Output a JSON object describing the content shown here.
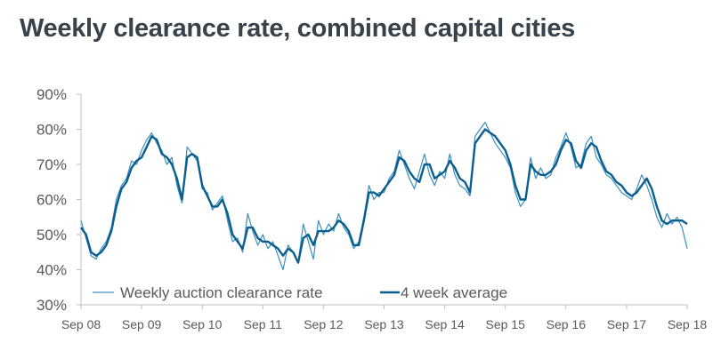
{
  "chart_data": {
    "type": "line",
    "title": "Weekly clearance rate, combined capital cities",
    "xlabel": "",
    "ylabel": "",
    "ylim": [
      30,
      90
    ],
    "y_ticks": [
      "30%",
      "40%",
      "50%",
      "60%",
      "70%",
      "80%",
      "90%"
    ],
    "y_tick_values": [
      30,
      40,
      50,
      60,
      70,
      80,
      90
    ],
    "x_ticks": [
      "Sep 08",
      "Sep 09",
      "Sep 10",
      "Sep 11",
      "Sep 12",
      "Sep 13",
      "Sep 14",
      "Sep 15",
      "Sep 16",
      "Sep 17",
      "Sep 18"
    ],
    "x_unit": "months since Sep 08 (monthly samples)",
    "xlim": [
      0,
      120
    ],
    "legend_position": "bottom",
    "grid": false,
    "colors": {
      "weekly": "#3a8fbf",
      "average": "#0b5f8f",
      "axis": "#bfbfbf"
    },
    "series": [
      {
        "name": "Weekly auction clearance rate",
        "values": [
          54,
          49,
          44,
          43,
          46,
          48,
          52,
          60,
          64,
          66,
          71,
          70,
          74,
          77,
          79,
          76,
          74,
          70,
          72,
          64,
          59,
          75,
          73,
          71,
          63,
          62,
          57,
          59,
          61,
          54,
          48,
          49,
          45,
          56,
          51,
          47,
          50,
          46,
          48,
          44,
          40,
          47,
          45,
          42,
          53,
          48,
          43,
          54,
          50,
          53,
          51,
          56,
          52,
          50,
          46,
          48,
          55,
          64,
          60,
          62,
          62,
          66,
          68,
          74,
          70,
          66,
          63,
          68,
          73,
          67,
          64,
          68,
          66,
          73,
          67,
          64,
          63,
          61,
          78,
          80,
          82,
          79,
          76,
          74,
          72,
          69,
          62,
          58,
          60,
          72,
          66,
          69,
          66,
          67,
          72,
          75,
          79,
          75,
          69,
          70,
          76,
          78,
          72,
          70,
          67,
          66,
          64,
          62,
          61,
          60,
          63,
          67,
          64,
          60,
          55,
          52,
          56,
          53,
          55,
          52,
          46
        ]
      },
      {
        "name": "4 week average",
        "values": [
          52,
          50,
          45,
          44,
          45,
          47,
          51,
          58,
          63,
          65,
          69,
          71,
          72,
          75,
          78,
          77,
          73,
          72,
          70,
          66,
          60,
          72,
          73,
          72,
          64,
          61,
          58,
          58,
          60,
          56,
          50,
          48,
          46,
          52,
          52,
          49,
          48,
          48,
          47,
          46,
          44,
          46,
          45,
          42,
          49,
          50,
          47,
          51,
          51,
          51,
          52,
          54,
          53,
          51,
          47,
          47,
          54,
          62,
          62,
          61,
          63,
          65,
          67,
          72,
          71,
          68,
          66,
          65,
          70,
          70,
          66,
          67,
          68,
          71,
          69,
          66,
          65,
          62,
          76,
          78,
          80,
          79,
          78,
          76,
          74,
          70,
          64,
          60,
          60,
          70,
          68,
          67,
          67,
          68,
          70,
          74,
          77,
          76,
          71,
          69,
          74,
          76,
          75,
          71,
          68,
          67,
          65,
          64,
          62,
          61,
          62,
          64,
          66,
          63,
          58,
          54,
          53,
          54,
          54,
          54,
          53
        ]
      }
    ]
  }
}
